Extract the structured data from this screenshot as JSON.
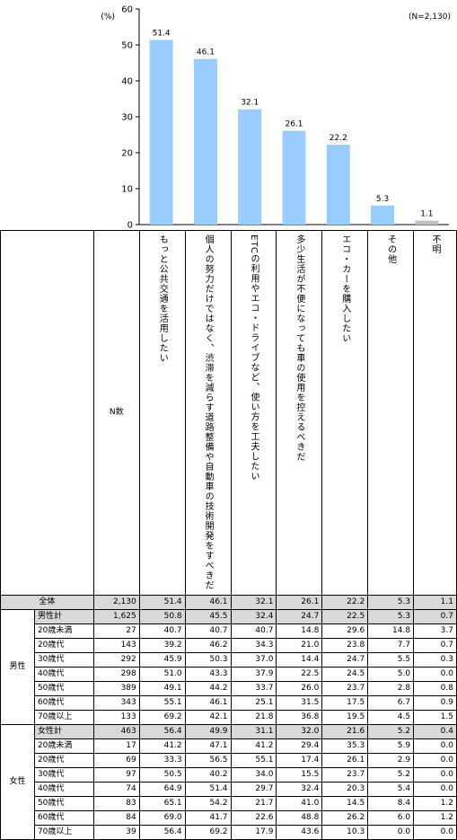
{
  "chart_data": {
    "type": "bar",
    "ylabel": "(%)",
    "note": "(N=2,130)",
    "ylim": [
      0,
      60
    ],
    "yticks": [
      0,
      10,
      20,
      30,
      40,
      50,
      60
    ],
    "categories": [
      "もっと公共交通を活用したい",
      "個人の努力だけではなく、渋滞を減らす道路整備や自動車の技術開発をすべきだ",
      "ETCの利用やエコ・ドライブなど、使い方を工夫したい",
      "多少生活が不便になっても車の使用を控えるべきだ",
      "エコ・カーを購入したい",
      "その他",
      "不明"
    ],
    "values": [
      51.4,
      46.1,
      32.1,
      26.1,
      22.2,
      5.3,
      1.1
    ],
    "value_labels": [
      "51.4",
      "46.1",
      "32.1",
      "26.1",
      "22.2",
      "5.3",
      "1.1"
    ],
    "colors": [
      "#99ccff",
      "#99ccff",
      "#99ccff",
      "#99ccff",
      "#99ccff",
      "#99ccff",
      "#c0c0c0"
    ]
  },
  "table": {
    "n_header": "N数",
    "columns": [
      "もっと公共交通を活用したい",
      "個人の努力だけではなく、渋滞を減らす道路整備や自動車の技術開発をすべきだ",
      "ETCの利用やエコ・ドライブなど、使い方を工夫したい",
      "多少生活が不便になっても車の使用を控えるべきだ",
      "エコ・カーを購入したい",
      "その他",
      "不明"
    ],
    "total": {
      "label": "全体",
      "n": "2,130",
      "values": [
        "51.4",
        "46.1",
        "32.1",
        "26.1",
        "22.2",
        "5.3",
        "1.1"
      ]
    },
    "groups": [
      {
        "label": "男性",
        "subtotal": {
          "label": "男性計",
          "n": "1,625",
          "values": [
            "50.8",
            "45.5",
            "32.4",
            "24.7",
            "22.5",
            "5.3",
            "0.7"
          ]
        },
        "rows": [
          {
            "label": "20歳未満",
            "n": "27",
            "values": [
              "40.7",
              "40.7",
              "40.7",
              "14.8",
              "29.6",
              "14.8",
              "3.7"
            ]
          },
          {
            "label": "20歳代",
            "n": "143",
            "values": [
              "39.2",
              "46.2",
              "34.3",
              "21.0",
              "23.8",
              "7.7",
              "0.7"
            ]
          },
          {
            "label": "30歳代",
            "n": "292",
            "values": [
              "45.9",
              "50.3",
              "37.0",
              "14.4",
              "24.7",
              "5.5",
              "0.3"
            ]
          },
          {
            "label": "40歳代",
            "n": "298",
            "values": [
              "51.0",
              "43.3",
              "37.9",
              "22.5",
              "24.5",
              "5.0",
              "0.0"
            ]
          },
          {
            "label": "50歳代",
            "n": "389",
            "values": [
              "49.1",
              "44.2",
              "33.7",
              "26.0",
              "23.7",
              "2.8",
              "0.8"
            ]
          },
          {
            "label": "60歳代",
            "n": "343",
            "values": [
              "55.1",
              "46.1",
              "25.1",
              "31.5",
              "17.5",
              "6.7",
              "0.9"
            ]
          },
          {
            "label": "70歳以上",
            "n": "133",
            "values": [
              "69.2",
              "42.1",
              "21.8",
              "36.8",
              "19.5",
              "4.5",
              "1.5"
            ]
          }
        ]
      },
      {
        "label": "女性",
        "subtotal": {
          "label": "女性計",
          "n": "463",
          "values": [
            "56.4",
            "49.9",
            "31.1",
            "32.0",
            "21.6",
            "5.2",
            "0.4"
          ]
        },
        "rows": [
          {
            "label": "20歳未満",
            "n": "17",
            "values": [
              "41.2",
              "47.1",
              "41.2",
              "29.4",
              "35.3",
              "5.9",
              "0.0"
            ]
          },
          {
            "label": "20歳代",
            "n": "69",
            "values": [
              "33.3",
              "56.5",
              "55.1",
              "17.4",
              "26.1",
              "2.9",
              "0.0"
            ]
          },
          {
            "label": "30歳代",
            "n": "97",
            "values": [
              "50.5",
              "40.2",
              "34.0",
              "15.5",
              "23.7",
              "5.2",
              "0.0"
            ]
          },
          {
            "label": "40歳代",
            "n": "74",
            "values": [
              "64.9",
              "51.4",
              "29.7",
              "32.4",
              "20.3",
              "5.4",
              "0.0"
            ]
          },
          {
            "label": "50歳代",
            "n": "83",
            "values": [
              "65.1",
              "54.2",
              "21.7",
              "41.0",
              "14.5",
              "8.4",
              "1.2"
            ]
          },
          {
            "label": "60歳代",
            "n": "84",
            "values": [
              "69.0",
              "41.7",
              "22.6",
              "48.8",
              "26.2",
              "6.0",
              "1.2"
            ]
          },
          {
            "label": "70歳以上",
            "n": "39",
            "values": [
              "56.4",
              "69.2",
              "17.9",
              "43.6",
              "10.3",
              "0.0",
              "0.0"
            ]
          }
        ]
      }
    ]
  }
}
